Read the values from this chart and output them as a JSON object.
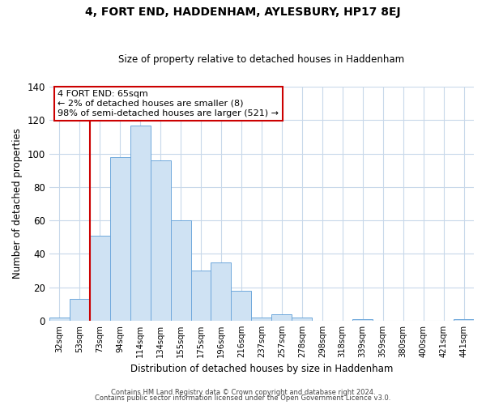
{
  "title": "4, FORT END, HADDENHAM, AYLESBURY, HP17 8EJ",
  "subtitle": "Size of property relative to detached houses in Haddenham",
  "xlabel": "Distribution of detached houses by size in Haddenham",
  "ylabel": "Number of detached properties",
  "bar_labels": [
    "32sqm",
    "53sqm",
    "73sqm",
    "94sqm",
    "114sqm",
    "134sqm",
    "155sqm",
    "175sqm",
    "196sqm",
    "216sqm",
    "237sqm",
    "257sqm",
    "278sqm",
    "298sqm",
    "318sqm",
    "339sqm",
    "359sqm",
    "380sqm",
    "400sqm",
    "421sqm",
    "441sqm"
  ],
  "bar_values": [
    2,
    13,
    51,
    98,
    117,
    96,
    60,
    30,
    35,
    18,
    2,
    4,
    2,
    0,
    0,
    1,
    0,
    0,
    0,
    0,
    1
  ],
  "bar_color": "#cfe2f3",
  "bar_edge_color": "#6fa8dc",
  "vline_color": "#cc0000",
  "annotation_title": "4 FORT END: 65sqm",
  "annotation_line1": "← 2% of detached houses are smaller (8)",
  "annotation_line2": "98% of semi-detached houses are larger (521) →",
  "annotation_box_color": "#ffffff",
  "annotation_box_edge": "#cc0000",
  "ylim": [
    0,
    140
  ],
  "yticks": [
    0,
    20,
    40,
    60,
    80,
    100,
    120,
    140
  ],
  "footer1": "Contains HM Land Registry data © Crown copyright and database right 2024.",
  "footer2": "Contains public sector information licensed under the Open Government Licence v3.0.",
  "background_color": "#ffffff",
  "grid_color": "#c8d8ea"
}
